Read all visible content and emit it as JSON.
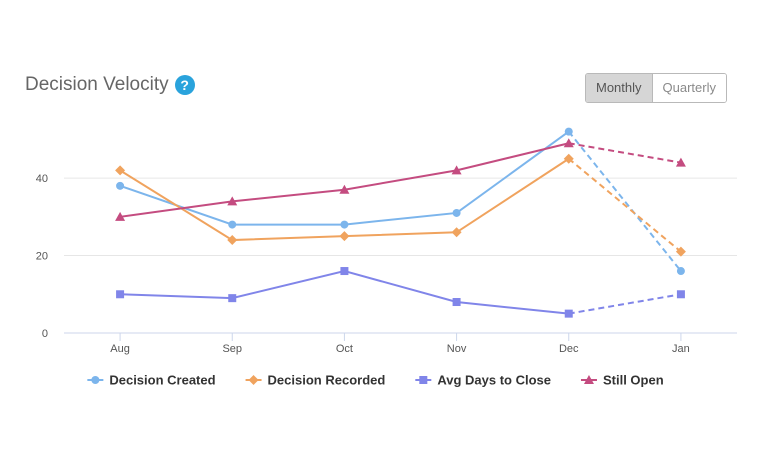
{
  "header": {
    "title": "Decision Velocity",
    "help_glyph": "?"
  },
  "toggle": {
    "monthly": "Monthly",
    "quarterly": "Quarterly",
    "active": "monthly"
  },
  "chart_data": {
    "type": "line",
    "categories": [
      "Aug",
      "Sep",
      "Oct",
      "Nov",
      "Dec",
      "Jan"
    ],
    "ylim": [
      0,
      55
    ],
    "yticks": [
      0,
      20,
      40
    ],
    "grid": true,
    "legend_position": "bottom",
    "projected_from_index": 4,
    "series": [
      {
        "name": "Decision Created",
        "color": "#7cb5ec",
        "marker": "circle",
        "values": [
          38,
          28,
          28,
          31,
          52,
          16
        ]
      },
      {
        "name": "Decision Recorded",
        "color": "#f0a35e",
        "marker": "diamond",
        "values": [
          42,
          24,
          25,
          26,
          45,
          21
        ]
      },
      {
        "name": "Avg Days to Close",
        "color": "#8085e9",
        "marker": "square",
        "values": [
          10,
          9,
          16,
          8,
          5,
          10
        ]
      },
      {
        "name": "Still Open",
        "color": "#c44c80",
        "marker": "triangle",
        "values": [
          30,
          34,
          37,
          42,
          49,
          44
        ]
      }
    ]
  }
}
